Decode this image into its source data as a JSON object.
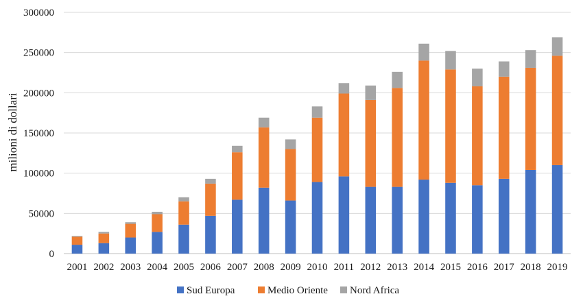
{
  "chart_data": {
    "type": "bar",
    "stacked": true,
    "title": "",
    "xlabel": "",
    "ylabel": "milioni di dollari",
    "ylim": [
      0,
      300000
    ],
    "yticks": [
      0,
      50000,
      100000,
      150000,
      200000,
      250000,
      300000
    ],
    "grid": true,
    "legend_position": "bottom",
    "categories": [
      "2001",
      "2002",
      "2003",
      "2004",
      "2005",
      "2006",
      "2007",
      "2008",
      "2009",
      "2010",
      "2011",
      "2012",
      "2013",
      "2014",
      "2015",
      "2016",
      "2017",
      "2018",
      "2019"
    ],
    "series": [
      {
        "name": "Sud Europa",
        "color": "#4472c4",
        "values": [
          11000,
          13000,
          20000,
          27000,
          36000,
          47000,
          67000,
          82000,
          66000,
          89000,
          96000,
          83000,
          83000,
          92000,
          88000,
          85000,
          93000,
          104000,
          110000
        ]
      },
      {
        "name": "Medio Oriente",
        "color": "#ed7d31",
        "values": [
          10000,
          12000,
          17000,
          22000,
          29000,
          40000,
          59000,
          75000,
          64000,
          80000,
          103000,
          108000,
          123000,
          148000,
          141000,
          123000,
          127000,
          127000,
          136000
        ]
      },
      {
        "name": "Nord Africa",
        "color": "#a5a5a5",
        "values": [
          1000,
          2000,
          2000,
          3000,
          5000,
          6000,
          8000,
          12000,
          12000,
          14000,
          13000,
          18000,
          20000,
          21000,
          23000,
          22000,
          19000,
          22000,
          23000
        ]
      }
    ]
  }
}
